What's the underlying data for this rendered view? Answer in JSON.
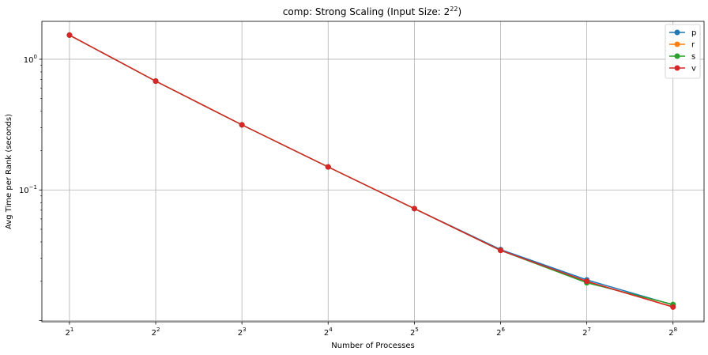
{
  "chart_data": {
    "type": "line",
    "title_prefix": "comp: Strong Scaling (Input Size: 2",
    "title_exponent": "22",
    "title_suffix": ")",
    "xlabel": "Number of Processes",
    "ylabel": "Avg Time per Rank (seconds)",
    "x_scale": "log2",
    "y_scale": "log10",
    "x": [
      2,
      4,
      8,
      16,
      32,
      64,
      128,
      256
    ],
    "x_tick_labels": [
      {
        "base": "2",
        "exp": "1"
      },
      {
        "base": "2",
        "exp": "2"
      },
      {
        "base": "2",
        "exp": "3"
      },
      {
        "base": "2",
        "exp": "4"
      },
      {
        "base": "2",
        "exp": "5"
      },
      {
        "base": "2",
        "exp": "6"
      },
      {
        "base": "2",
        "exp": "7"
      },
      {
        "base": "2",
        "exp": "8"
      }
    ],
    "y_tick_labels": [
      {
        "value": 1,
        "base": "10",
        "exp": "0"
      },
      {
        "value": 0.1,
        "base": "10",
        "exp": "−1"
      }
    ],
    "ylim": [
      0.0098,
      1.95
    ],
    "xlim_exp": [
      0.68,
      8.36
    ],
    "grid": true,
    "legend_position": "top-right",
    "series": [
      {
        "name": "p",
        "color": "#1f77b4",
        "values": [
          1.53,
          0.68,
          0.315,
          0.15,
          0.072,
          0.035,
          0.0205,
          0.0132
        ]
      },
      {
        "name": "r",
        "color": "#ff7f0e",
        "values": [
          1.53,
          0.68,
          0.315,
          0.15,
          0.072,
          0.0345,
          0.0198,
          0.0128
        ]
      },
      {
        "name": "s",
        "color": "#2ca02c",
        "values": [
          1.53,
          0.68,
          0.315,
          0.15,
          0.072,
          0.0345,
          0.0195,
          0.0133
        ]
      },
      {
        "name": "v",
        "color": "#d62728",
        "values": [
          1.53,
          0.68,
          0.315,
          0.15,
          0.072,
          0.0345,
          0.02,
          0.0127
        ]
      }
    ]
  }
}
